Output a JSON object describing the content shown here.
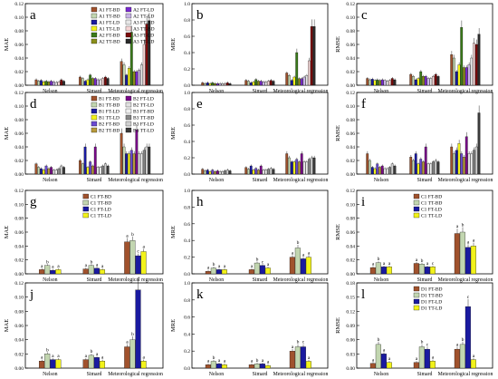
{
  "colors": {
    "FT-BD": "#a0522d",
    "TT-BD": "#c2d6b0",
    "FT-LD": "#1a1aa0",
    "TT-LD": "#f2f21a",
    "A3": "#ffffff",
    "A3TT": "#9a9a9a",
    "Aset": [
      "#a0522d",
      "#c2d6b0",
      "#1a1aa0",
      "#f2f21a",
      "#3a7a1a",
      "#8a8f1a",
      "#7a2ad0",
      "#c8b4e6",
      "#e8e8e8",
      "#f5d5d5",
      "#7a0a0a",
      "#2a2a2a"
    ],
    "Bset": [
      "#a0522d",
      "#c2d6b0",
      "#1a1aa0",
      "#f2f21a",
      "#6a4ad0",
      "#b89a3a",
      "#7a0a8a",
      "#e0e0e0",
      "#f0f0f0",
      "#888888",
      "#d0d0d0",
      "#3a3a3a"
    ]
  },
  "chart_data": [
    {
      "panel": "a",
      "type": "bar",
      "ylabel": "MAE",
      "yticks": [
        "0.00",
        "0.02",
        "0.04",
        "0.06",
        "0.08",
        "0.10",
        "0.12"
      ],
      "ylim": [
        0,
        0.12
      ],
      "categories": [
        "Nelson",
        "Simard",
        "Meteorological regression"
      ],
      "nseries": 12,
      "values": [
        [
          0.008,
          0.006,
          0.007,
          0.005,
          0.006,
          0.005,
          0.006,
          0.005,
          0.004,
          0.005,
          0.008,
          0.006
        ],
        [
          0.012,
          0.01,
          0.006,
          0.008,
          0.015,
          0.01,
          0.01,
          0.008,
          0.008,
          0.01,
          0.012,
          0.01
        ],
        [
          0.035,
          0.03,
          0.015,
          0.025,
          0.078,
          0.02,
          0.02,
          0.022,
          0.03,
          0.06,
          0.09,
          0.095
        ]
      ],
      "legend": [
        "A1 FT-BD",
        "A1 TT-BD",
        "A1 FT-LD",
        "A1 TT-LD",
        "A2 FT-BD",
        "A2 TT-BD",
        "A2 FT-LD",
        "A2 TT-LD",
        "A3 FT-BD",
        "A3 TT-BD",
        "A3 FT-LD",
        "A3 TT-LD"
      ]
    },
    {
      "panel": "b",
      "type": "bar",
      "ylabel": "MRE",
      "yticks": [
        "0.0",
        "0.2",
        "0.4",
        "0.6",
        "0.8",
        "1.0"
      ],
      "ylim": [
        0,
        1.0
      ],
      "categories": [
        "Nelson",
        "Simard",
        "Meteorological regression"
      ],
      "nseries": 12,
      "values": [
        [
          0.03,
          0.02,
          0.03,
          0.02,
          0.03,
          0.02,
          0.02,
          0.02,
          0.02,
          0.02,
          0.03,
          0.02
        ],
        [
          0.06,
          0.05,
          0.03,
          0.04,
          0.07,
          0.05,
          0.05,
          0.04,
          0.04,
          0.05,
          0.06,
          0.05
        ],
        [
          0.15,
          0.12,
          0.06,
          0.1,
          0.4,
          0.08,
          0.08,
          0.1,
          0.12,
          0.3,
          0.72,
          0.72
        ]
      ]
    },
    {
      "panel": "c",
      "type": "bar",
      "ylabel": "RMSE",
      "yticks": [
        "0.00",
        "0.02",
        "0.04",
        "0.06",
        "0.08",
        "0.10",
        "0.12"
      ],
      "ylim": [
        0,
        0.12
      ],
      "categories": [
        "Nelson",
        "Simard",
        "Meteorological regression"
      ],
      "nseries": 12,
      "values": [
        [
          0.01,
          0.008,
          0.009,
          0.007,
          0.008,
          0.007,
          0.008,
          0.007,
          0.006,
          0.007,
          0.01,
          0.008
        ],
        [
          0.016,
          0.013,
          0.008,
          0.01,
          0.02,
          0.013,
          0.013,
          0.01,
          0.01,
          0.013,
          0.016,
          0.013
        ],
        [
          0.045,
          0.04,
          0.02,
          0.03,
          0.085,
          0.026,
          0.026,
          0.03,
          0.04,
          0.062,
          0.06,
          0.075
        ]
      ]
    },
    {
      "panel": "d",
      "type": "bar",
      "ylabel": "MAE",
      "yticks": [
        "0.00",
        "0.02",
        "0.04",
        "0.06",
        "0.08",
        "0.10",
        "0.12"
      ],
      "ylim": [
        0,
        0.12
      ],
      "categories": [
        "Nelson",
        "Simard",
        "Meteorological regression"
      ],
      "nseries": 12,
      "values": [
        [
          0.015,
          0.01,
          0.008,
          0.006,
          0.012,
          0.008,
          0.01,
          0.006,
          0.006,
          0.008,
          0.012,
          0.01
        ],
        [
          0.02,
          0.015,
          0.04,
          0.01,
          0.018,
          0.012,
          0.04,
          0.01,
          0.01,
          0.012,
          0.015,
          0.012
        ],
        [
          0.06,
          0.04,
          0.03,
          0.03,
          0.035,
          0.03,
          0.065,
          0.03,
          0.03,
          0.035,
          0.04,
          0.04
        ]
      ],
      "legend": [
        "B1 FT-BD",
        "B1 TT-BD",
        "B1 FT-LD",
        "B1 TT-LD",
        "B2 FT-BD",
        "B2 TT-BD",
        "B2 FT-LD",
        "B2 TT-LD",
        "B3 FT-BD",
        "B3 TT-BD",
        "B3 FT-LD",
        "B3 TT-LD"
      ]
    },
    {
      "panel": "e",
      "type": "bar",
      "ylabel": "MRE",
      "yticks": [
        "0.0",
        "0.2",
        "0.4",
        "0.6",
        "0.8",
        "1.0"
      ],
      "ylim": [
        0,
        1.0
      ],
      "categories": [
        "Nelson",
        "Simard",
        "Meteorological regression"
      ],
      "nseries": 12,
      "values": [
        [
          0.06,
          0.04,
          0.05,
          0.03,
          0.05,
          0.03,
          0.04,
          0.03,
          0.03,
          0.04,
          0.05,
          0.04
        ],
        [
          0.08,
          0.06,
          0.1,
          0.05,
          0.07,
          0.05,
          0.1,
          0.05,
          0.05,
          0.06,
          0.07,
          0.06
        ],
        [
          0.25,
          0.2,
          0.15,
          0.15,
          0.18,
          0.15,
          0.25,
          0.15,
          0.15,
          0.18,
          0.2,
          0.2
        ]
      ]
    },
    {
      "panel": "f",
      "type": "bar",
      "ylabel": "RMSE",
      "yticks": [
        "0.00",
        "0.02",
        "0.04",
        "0.06",
        "0.08",
        "0.10",
        "0.12"
      ],
      "ylim": [
        0,
        0.12
      ],
      "categories": [
        "Nelson",
        "Simard",
        "Meteorological regression"
      ],
      "nseries": 12,
      "values": [
        [
          0.03,
          0.02,
          0.01,
          0.008,
          0.015,
          0.01,
          0.012,
          0.008,
          0.008,
          0.01,
          0.015,
          0.012
        ],
        [
          0.025,
          0.02,
          0.03,
          0.015,
          0.022,
          0.018,
          0.04,
          0.015,
          0.015,
          0.018,
          0.02,
          0.018
        ],
        [
          0.04,
          0.03,
          0.035,
          0.045,
          0.03,
          0.025,
          0.055,
          0.03,
          0.03,
          0.035,
          0.04,
          0.09
        ]
      ]
    },
    {
      "panel": "g",
      "type": "bar",
      "ylabel": "MAE",
      "yticks": [
        "0.00",
        "0.02",
        "0.04",
        "0.06",
        "0.08",
        "0.10",
        "0.12"
      ],
      "ylim": [
        0,
        0.12
      ],
      "categories": [
        "Nelson",
        "Simard",
        "Meteorological regression"
      ],
      "nseries": 4,
      "values": [
        [
          0.006,
          0.012,
          0.005,
          0.006
        ],
        [
          0.007,
          0.012,
          0.008,
          0.006
        ],
        [
          0.046,
          0.048,
          0.026,
          0.032
        ]
      ],
      "letters": [
        [
          "a",
          "b",
          "a",
          "a"
        ],
        [
          "a",
          "b",
          "a",
          "a"
        ],
        [
          "a",
          "b",
          "c",
          "a"
        ]
      ],
      "legend": [
        "C1 FT-BD",
        "C1 TT-BD",
        "C1 FT-LD",
        "C1 TT-LD"
      ]
    },
    {
      "panel": "h",
      "type": "bar",
      "ylabel": "MRE",
      "yticks": [
        "0.0",
        "0.2",
        "0.4",
        "0.6",
        "0.8",
        "1.0"
      ],
      "ylim": [
        0,
        1.0
      ],
      "categories": [
        "Nelson",
        "Simard",
        "Meteorological regression"
      ],
      "nseries": 4,
      "values": [
        [
          0.03,
          0.07,
          0.05,
          0.05
        ],
        [
          0.05,
          0.13,
          0.1,
          0.07
        ],
        [
          0.2,
          0.31,
          0.18,
          0.2
        ]
      ],
      "letters": [
        [
          "a",
          "b",
          "a",
          "a"
        ],
        [
          "a",
          "b",
          "c",
          "a"
        ],
        [
          "a",
          "b",
          "a",
          "a"
        ]
      ]
    },
    {
      "panel": "i",
      "type": "bar",
      "ylabel": "RMSE",
      "yticks": [
        "0.00",
        "0.02",
        "0.04",
        "0.06",
        "0.08",
        "0.10",
        "0.12"
      ],
      "ylim": [
        0,
        0.12
      ],
      "categories": [
        "Nelson",
        "Simard",
        "Meteorological regression"
      ],
      "nseries": 4,
      "values": [
        [
          0.009,
          0.016,
          0.01,
          0.01
        ],
        [
          0.015,
          0.014,
          0.01,
          0.01
        ],
        [
          0.058,
          0.06,
          0.038,
          0.04
        ]
      ],
      "letters": [
        [
          "a",
          "b",
          "a",
          "a"
        ],
        [
          "a",
          "b",
          "a",
          "c"
        ],
        [
          "a",
          "b",
          "a",
          "a"
        ]
      ],
      "legend": [
        "C1 FT-BD",
        "C1 TT-BD",
        "C1 FT-LD",
        "C1 TT-LD"
      ]
    },
    {
      "panel": "j",
      "type": "bar",
      "ylabel": "MAE",
      "yticks": [
        "0.00",
        "0.02",
        "0.04",
        "0.06",
        "0.08",
        "0.10",
        "0.12"
      ],
      "ylim": [
        0,
        0.12
      ],
      "categories": [
        "Nelson",
        "Simard",
        "Meteorological regression"
      ],
      "nseries": 4,
      "values": [
        [
          0.01,
          0.02,
          0.012,
          0.012
        ],
        [
          0.012,
          0.018,
          0.015,
          0.01
        ],
        [
          0.03,
          0.04,
          0.11,
          0.01
        ]
      ],
      "letters": [
        [
          "a",
          "b",
          "a",
          "a"
        ],
        [
          "a",
          "b",
          "a",
          "a"
        ],
        [
          "a",
          "b",
          "c",
          "a"
        ]
      ]
    },
    {
      "panel": "k",
      "type": "bar",
      "ylabel": "MRE",
      "yticks": [
        "0.0",
        "0.2",
        "0.4",
        "0.6",
        "0.8",
        "1.0"
      ],
      "ylim": [
        0,
        1.0
      ],
      "categories": [
        "Nelson",
        "Simard",
        "Meteorological regression"
      ],
      "nseries": 4,
      "values": [
        [
          0.04,
          0.08,
          0.05,
          0.04
        ],
        [
          0.04,
          0.05,
          0.05,
          0.03
        ],
        [
          0.2,
          0.25,
          0.25,
          0.08
        ]
      ],
      "letters": [
        [
          "a",
          "b",
          "a",
          "a"
        ],
        [
          "a",
          "b",
          "a",
          "a"
        ],
        [
          "a",
          "b",
          "c",
          "a"
        ]
      ]
    },
    {
      "panel": "l",
      "type": "bar",
      "ylabel": "RMSE",
      "yticks": [
        "0.00",
        "0.03",
        "0.06",
        "0.09",
        "0.12",
        "0.15",
        "0.18"
      ],
      "ylim": [
        0,
        0.18
      ],
      "categories": [
        "Nelson",
        "Simard",
        "Meteorological regression"
      ],
      "nseries": 4,
      "values": [
        [
          0.01,
          0.05,
          0.03,
          0.012
        ],
        [
          0.012,
          0.045,
          0.04,
          0.015
        ],
        [
          0.04,
          0.05,
          0.13,
          0.018
        ]
      ],
      "letters": [
        [
          "a",
          "b",
          "a",
          "a"
        ],
        [
          "a",
          "b",
          "c",
          "a"
        ],
        [
          "a",
          "b",
          "c",
          "a"
        ]
      ],
      "legend": [
        "D1 FT-BD",
        "D1 TT-BD",
        "D1 FT-LD",
        "D1 TT-LD"
      ]
    }
  ]
}
